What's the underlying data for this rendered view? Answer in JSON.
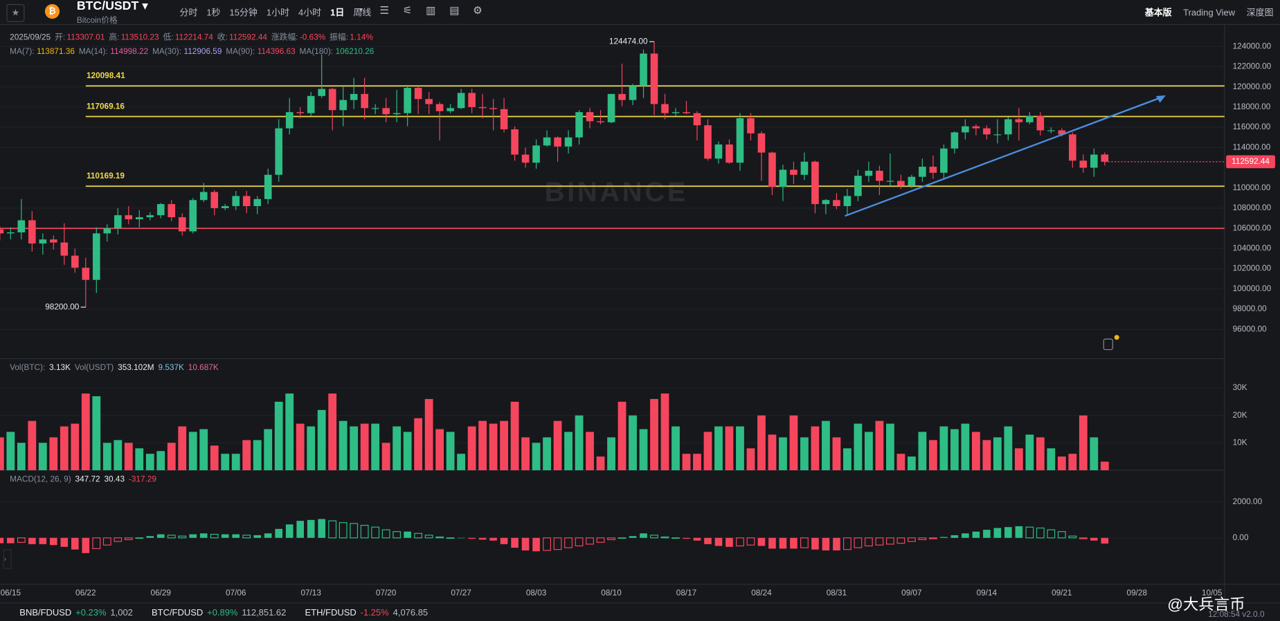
{
  "topbar": {
    "symbol": "BTC/USDT",
    "subtitle": "Bitcoin价格",
    "intervals": [
      "分时",
      "1秒",
      "15分钟",
      "1小时",
      "4小时",
      "1日",
      "周线"
    ],
    "active_interval": "1日",
    "views": [
      "基本版",
      "Trading View",
      "深度图"
    ],
    "active_view": "基本版"
  },
  "info": {
    "date": "2025/09/25",
    "value_color": "#f6465d",
    "fields": [
      {
        "label": "开:",
        "value": "113307.01"
      },
      {
        "label": "高:",
        "value": "113510.23"
      },
      {
        "label": "低:",
        "value": "112214.74"
      },
      {
        "label": "收:",
        "value": "112592.44"
      },
      {
        "label": "涨跌幅:",
        "value": "-0.63%"
      },
      {
        "label": "振幅:",
        "value": "1.14%"
      }
    ]
  },
  "ma_legend": [
    {
      "label": "MA(7):",
      "value": "113871.36",
      "color": "#f0b90b"
    },
    {
      "label": "MA(14):",
      "value": "114998.22",
      "color": "#e0609a"
    },
    {
      "label": "MA(30):",
      "value": "112906.59",
      "color": "#a9a4f5"
    },
    {
      "label": "MA(90):",
      "value": "114396.63",
      "color": "#f6465d"
    },
    {
      "label": "MA(180):",
      "value": "106210.26",
      "color": "#2ebd85"
    }
  ],
  "vol_legend": [
    {
      "text": "Vol(BTC):",
      "color": "#848e9c"
    },
    {
      "text": "3.13K",
      "color": "#eaecef"
    },
    {
      "text": "Vol(USDT)",
      "color": "#848e9c"
    },
    {
      "text": "353.102M",
      "color": "#eaecef"
    },
    {
      "text": "9.537K",
      "color": "#7ac7e0"
    },
    {
      "text": "10.687K",
      "color": "#e06c8c"
    }
  ],
  "macd_legend": [
    {
      "text": "MACD(12, 26, 9)",
      "color": "#848e9c"
    },
    {
      "text": "347.72",
      "color": "#eaecef"
    },
    {
      "text": "30.43",
      "color": "#eaecef"
    },
    {
      "text": "-317.29",
      "color": "#f6465d"
    }
  ],
  "chart": {
    "type": "candlestick",
    "watermark": "BINANCE",
    "up_color": "#2ebd85",
    "down_color": "#f6465d",
    "dates": [
      "06/14",
      "06/15",
      "06/16",
      "06/17",
      "06/18",
      "06/19",
      "06/20",
      "06/21",
      "06/22",
      "06/23",
      "06/24",
      "06/25",
      "06/26",
      "06/27",
      "06/28",
      "06/29",
      "06/30",
      "07/01",
      "07/02",
      "07/03",
      "07/04",
      "07/05",
      "07/06",
      "07/07",
      "07/08",
      "07/09",
      "07/10",
      "07/11",
      "07/12",
      "07/13",
      "07/14",
      "07/15",
      "07/16",
      "07/17",
      "07/18",
      "07/19",
      "07/20",
      "07/21",
      "07/22",
      "07/23",
      "07/24",
      "07/25",
      "07/26",
      "07/27",
      "07/28",
      "07/29",
      "07/30",
      "07/31",
      "08/01",
      "08/02",
      "08/03",
      "08/04",
      "08/05",
      "08/06",
      "08/07",
      "08/08",
      "08/09",
      "08/10",
      "08/11",
      "08/12",
      "08/13",
      "08/14",
      "08/15",
      "08/16",
      "08/17",
      "08/18",
      "08/19",
      "08/20",
      "08/21",
      "08/22",
      "08/23",
      "08/24",
      "08/25",
      "08/26",
      "08/27",
      "08/28",
      "08/29",
      "08/30",
      "08/31",
      "09/01",
      "09/02",
      "09/03",
      "09/04",
      "09/05",
      "09/06",
      "09/07",
      "09/08",
      "09/09",
      "09/10",
      "09/11",
      "09/12",
      "09/13",
      "09/14",
      "09/15",
      "09/16",
      "09/17",
      "09/18",
      "09/19",
      "09/20",
      "09/21",
      "09/22",
      "09/23",
      "09/24",
      "09/25"
    ],
    "ohlc": [
      [
        105900,
        106200,
        104800,
        105500
      ],
      [
        105500,
        106100,
        104900,
        105600
      ],
      [
        105600,
        108900,
        104900,
        106800
      ],
      [
        106800,
        107700,
        103700,
        104500
      ],
      [
        104500,
        105500,
        103400,
        104900
      ],
      [
        104900,
        105300,
        103900,
        104600
      ],
      [
        104600,
        106500,
        102400,
        103300
      ],
      [
        103300,
        104000,
        101600,
        102100
      ],
      [
        102100,
        103100,
        98200,
        100900
      ],
      [
        100900,
        106100,
        99600,
        105500
      ],
      [
        105500,
        106400,
        104700,
        106000
      ],
      [
        106000,
        108000,
        105400,
        107300
      ],
      [
        107300,
        108200,
        106400,
        106900
      ],
      [
        106900,
        107800,
        106100,
        107100
      ],
      [
        107100,
        107600,
        106800,
        107300
      ],
      [
        107300,
        108500,
        107000,
        108400
      ],
      [
        108400,
        108800,
        106700,
        107100
      ],
      [
        107100,
        107500,
        105300,
        105700
      ],
      [
        105700,
        109000,
        105500,
        108800
      ],
      [
        108800,
        110500,
        108600,
        109600
      ],
      [
        109600,
        109800,
        107300,
        108000
      ],
      [
        108000,
        108400,
        107800,
        108200
      ],
      [
        108200,
        109700,
        107800,
        109200
      ],
      [
        109200,
        109700,
        107500,
        108200
      ],
      [
        108200,
        109200,
        107400,
        108900
      ],
      [
        108900,
        111900,
        108400,
        111300
      ],
      [
        111300,
        116800,
        110600,
        115900
      ],
      [
        115900,
        118900,
        115300,
        117500
      ],
      [
        117500,
        118000,
        116900,
        117400
      ],
      [
        117400,
        119500,
        117100,
        119100
      ],
      [
        119100,
        123200,
        118900,
        119800
      ],
      [
        119800,
        119900,
        115700,
        117700
      ],
      [
        117700,
        120000,
        116100,
        118700
      ],
      [
        118700,
        120900,
        117800,
        119300
      ],
      [
        119300,
        120900,
        116800,
        117900
      ],
      [
        117900,
        118300,
        117300,
        117900
      ],
      [
        117900,
        118900,
        116500,
        117300
      ],
      [
        117300,
        119700,
        116500,
        117400
      ],
      [
        117400,
        120200,
        116100,
        119900
      ],
      [
        119900,
        120000,
        117300,
        118800
      ],
      [
        118800,
        119500,
        117300,
        118300
      ],
      [
        118300,
        118500,
        114700,
        117600
      ],
      [
        117600,
        118300,
        117400,
        117900
      ],
      [
        117900,
        119800,
        117800,
        119400
      ],
      [
        119400,
        119800,
        117400,
        118000
      ],
      [
        118000,
        119300,
        116900,
        117900
      ],
      [
        117900,
        118800,
        115700,
        117800
      ],
      [
        117800,
        118900,
        115500,
        115800
      ],
      [
        115800,
        116100,
        112700,
        113300
      ],
      [
        113300,
        114000,
        112000,
        112500
      ],
      [
        112500,
        114800,
        111900,
        114200
      ],
      [
        114200,
        115700,
        114100,
        115000
      ],
      [
        115000,
        115100,
        112600,
        114100
      ],
      [
        114100,
        115700,
        113400,
        115000
      ],
      [
        115000,
        117700,
        114300,
        117500
      ],
      [
        117500,
        117900,
        115900,
        116600
      ],
      [
        116600,
        117700,
        116300,
        116500
      ],
      [
        116500,
        119300,
        116400,
        119300
      ],
      [
        119300,
        122300,
        118100,
        118700
      ],
      [
        118700,
        120300,
        118200,
        120100
      ],
      [
        120100,
        123700,
        118900,
        123300
      ],
      [
        123300,
        124474,
        117200,
        118300
      ],
      [
        118300,
        119300,
        116800,
        117400
      ],
      [
        117400,
        117900,
        117100,
        117500
      ],
      [
        117500,
        118600,
        117300,
        117400
      ],
      [
        117400,
        117600,
        114700,
        116200
      ],
      [
        116200,
        116800,
        112700,
        112900
      ],
      [
        112900,
        114600,
        112400,
        114300
      ],
      [
        114300,
        114800,
        112400,
        112500
      ],
      [
        112500,
        117400,
        111700,
        116900
      ],
      [
        116900,
        117400,
        114700,
        115400
      ],
      [
        115400,
        115600,
        110700,
        113500
      ],
      [
        113500,
        113600,
        109300,
        110100
      ],
      [
        110100,
        112300,
        108700,
        111800
      ],
      [
        111800,
        112600,
        110400,
        111300
      ],
      [
        111300,
        113500,
        110800,
        112600
      ],
      [
        112600,
        112700,
        107500,
        108400
      ],
      [
        108400,
        108900,
        107400,
        108800
      ],
      [
        108800,
        109500,
        107900,
        108200
      ],
      [
        108200,
        109900,
        107300,
        109200
      ],
      [
        109200,
        111800,
        108700,
        111200
      ],
      [
        111200,
        112600,
        110600,
        111700
      ],
      [
        111700,
        112200,
        109300,
        110700
      ],
      [
        110700,
        113400,
        110200,
        110700
      ],
      [
        110700,
        111300,
        109900,
        110200
      ],
      [
        110200,
        111300,
        110000,
        111100
      ],
      [
        111100,
        112900,
        110600,
        112100
      ],
      [
        112100,
        113200,
        110900,
        111500
      ],
      [
        111500,
        114300,
        110900,
        113900
      ],
      [
        113900,
        115600,
        113400,
        115500
      ],
      [
        115500,
        116800,
        114800,
        116100
      ],
      [
        116100,
        116300,
        115200,
        115900
      ],
      [
        115900,
        116200,
        114800,
        115300
      ],
      [
        115300,
        116800,
        114400,
        115300
      ],
      [
        115300,
        117000,
        114700,
        116800
      ],
      [
        116800,
        117900,
        114700,
        116500
      ],
      [
        116500,
        117500,
        116300,
        117100
      ],
      [
        117100,
        117500,
        115200,
        115700
      ],
      [
        115700,
        116000,
        115400,
        115700
      ],
      [
        115700,
        115900,
        115100,
        115300
      ],
      [
        115300,
        115500,
        112000,
        112700
      ],
      [
        112700,
        113300,
        111500,
        112000
      ],
      [
        112000,
        113900,
        111100,
        113300
      ],
      [
        113307.01,
        113510.23,
        112214.74,
        112592.44
      ]
    ],
    "ylim": [
      93110,
      126180
    ],
    "yticks": [
      {
        "value": 124000,
        "label": "124000.00"
      },
      {
        "value": 122000,
        "label": "122000.00"
      },
      {
        "value": 120000,
        "label": "120000.00"
      },
      {
        "value": 118000,
        "label": "118000.00"
      },
      {
        "value": 116000,
        "label": "116000.00"
      },
      {
        "value": 114000,
        "label": "114000.00"
      },
      {
        "value": 110000,
        "label": "110000.00"
      },
      {
        "value": 108000,
        "label": "108000.00"
      },
      {
        "value": 106000,
        "label": "106000.00"
      },
      {
        "value": 104000,
        "label": "104000.00"
      },
      {
        "value": 102000,
        "label": "102000.00"
      },
      {
        "value": 100000,
        "label": "100000.00"
      },
      {
        "value": 98000,
        "label": "98000.00"
      },
      {
        "value": 96000,
        "label": "96000.00"
      }
    ],
    "levels": [
      {
        "value": 120098.41,
        "label": "120098.41",
        "color": "#f0d94a"
      },
      {
        "value": 117069.16,
        "label": "117069.16",
        "color": "#f0d94a"
      },
      {
        "value": 110169.19,
        "label": "110169.19",
        "color": "#f0d94a"
      },
      {
        "value": 106000,
        "color": "#f6465d"
      }
    ],
    "annotations": [
      {
        "date": "08/14",
        "value": 124474,
        "label": "124474.00"
      },
      {
        "date": "06/22",
        "value": 98200,
        "label": "98200.00"
      }
    ],
    "volume": [
      12000,
      14000,
      10000,
      18000,
      10000,
      12000,
      16000,
      17000,
      28000,
      27000,
      10000,
      11000,
      10000,
      8000,
      6000,
      7000,
      10000,
      16000,
      14000,
      15000,
      9000,
      6000,
      6000,
      11000,
      11000,
      15000,
      25000,
      28000,
      17000,
      16000,
      22000,
      28000,
      18000,
      16000,
      17000,
      17000,
      10000,
      16000,
      14000,
      19000,
      26000,
      15000,
      14000,
      6000,
      16000,
      18000,
      17000,
      18000,
      25000,
      12000,
      10000,
      12000,
      18000,
      14000,
      20000,
      14000,
      5000,
      12000,
      25000,
      20000,
      15000,
      26000,
      28000,
      16000,
      6000,
      6000,
      14000,
      16000,
      16000,
      16000,
      8000,
      20000,
      13000,
      12000,
      20000,
      12000,
      16000,
      18000,
      12000,
      8000,
      17000,
      14000,
      18000,
      17000,
      6000,
      5000,
      14000,
      11000,
      16000,
      15000,
      17000,
      14000,
      11000,
      12000,
      16000,
      8000,
      13000,
      12000,
      8000,
      5000,
      6000,
      20000,
      12000,
      3130
    ],
    "vol_ylim": [
      0,
      40750
    ],
    "vol_ticks": [
      {
        "value": 30000,
        "label": "30K"
      },
      {
        "value": 20000,
        "label": "20K"
      },
      {
        "value": 10000,
        "label": "10K"
      }
    ],
    "macd_hist": [
      -300,
      -300,
      -250,
      -350,
      -350,
      -400,
      -500,
      -650,
      -850,
      -600,
      -400,
      -200,
      -100,
      0,
      100,
      200,
      150,
      100,
      200,
      250,
      200,
      200,
      200,
      150,
      150,
      250,
      500,
      750,
      950,
      1000,
      1050,
      950,
      850,
      800,
      700,
      600,
      450,
      350,
      350,
      250,
      150,
      50,
      0,
      0,
      -50,
      -100,
      -150,
      -350,
      -550,
      -700,
      -750,
      -700,
      -650,
      -550,
      -450,
      -350,
      -250,
      -100,
      0,
      100,
      250,
      150,
      50,
      0,
      -50,
      -150,
      -350,
      -450,
      -500,
      -450,
      -400,
      -450,
      -600,
      -600,
      -600,
      -550,
      -650,
      -700,
      -700,
      -650,
      -550,
      -450,
      -400,
      -350,
      -300,
      -200,
      -100,
      -50,
      50,
      150,
      250,
      350,
      450,
      550,
      600,
      650,
      600,
      550,
      450,
      350,
      100,
      -50,
      -150,
      -317.29
    ],
    "macd_ylim": [
      -2590,
      3770
    ],
    "macd_ticks": [
      {
        "value": 2000,
        "label": "2000.00"
      },
      {
        "value": 0,
        "label": "0.00"
      }
    ],
    "x_labels": [
      "06/15",
      "06/22",
      "06/29",
      "07/06",
      "07/13",
      "07/20",
      "07/27",
      "08/03",
      "08/10",
      "08/17",
      "08/24",
      "08/31",
      "09/07",
      "09/14",
      "09/21",
      "09/28",
      "10/05"
    ]
  },
  "bottom": {
    "tickers": [
      {
        "pair": "BNB/FDUSD",
        "change": "+0.23%",
        "price": "1,002",
        "color": "#2ebd85"
      },
      {
        "pair": "BTC/FDUSD",
        "change": "+0.89%",
        "price": "112,851.62",
        "color": "#2ebd85"
      },
      {
        "pair": "ETH/FDUSD",
        "change": "-1.25%",
        "price": "4,076.85",
        "color": "#f6465d"
      }
    ],
    "watermark": "@大兵言币",
    "time": "12:08:54",
    "version": "v2.0.0"
  }
}
